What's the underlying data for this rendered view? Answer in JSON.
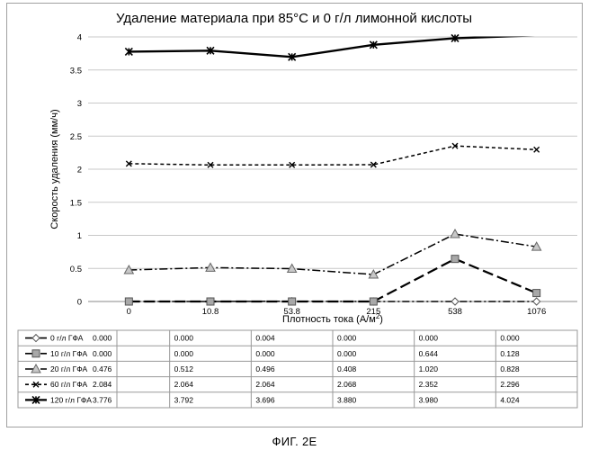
{
  "chart_data": {
    "type": "line",
    "title": "Удаление материала при 85°С и 0 г/л лимонной кислоты",
    "xlabel": "Плотность тока (А/м",
    "xlabel_sup": "2",
    "xlabel_end": ")",
    "ylabel": "Скорость удаления (мм/ч)",
    "ylim": [
      0,
      4
    ],
    "yticks": [
      "0",
      "0.5",
      "1",
      "1.5",
      "2",
      "2.5",
      "3",
      "3.5",
      "4"
    ],
    "grid": true,
    "legend": "table-below",
    "categories": [
      "0",
      "10.8",
      "53.8",
      "215",
      "538",
      "1076"
    ],
    "series": [
      {
        "name": "0 г/л ГФА",
        "marker": "diamond",
        "dash": "8,3,2,3",
        "color": "#000000",
        "values": [
          0.0,
          0.0,
          0.004,
          0.0,
          0.0,
          0.0
        ],
        "labels": [
          "0.000",
          "0.000",
          "0.004",
          "0.000",
          "0.000",
          "0.000"
        ]
      },
      {
        "name": "10 г/л ГФА",
        "marker": "square",
        "dash": "12,5",
        "color": "#000000",
        "values": [
          0.0,
          0.0,
          0.0,
          0.0,
          0.644,
          0.128
        ],
        "labels": [
          "0.000",
          "0.000",
          "0.000",
          "0.000",
          "0.644",
          "0.128"
        ]
      },
      {
        "name": "20 г/л ГФА",
        "marker": "triangle",
        "dash": "9,3,2,3",
        "color": "#000000",
        "values": [
          0.476,
          0.512,
          0.496,
          0.408,
          1.02,
          0.828
        ],
        "labels": [
          "0.476",
          "0.512",
          "0.496",
          "0.408",
          "1.020",
          "0.828"
        ]
      },
      {
        "name": "60 г/л ГФА",
        "marker": "x",
        "dash": "4,3",
        "color": "#000000",
        "values": [
          2.084,
          2.064,
          2.064,
          2.068,
          2.352,
          2.296
        ],
        "labels": [
          "2.084",
          "2.064",
          "2.064",
          "2.068",
          "2.352",
          "2.296"
        ]
      },
      {
        "name": "120 г/л ГФА",
        "marker": "star",
        "dash": "",
        "color": "#000000",
        "values": [
          3.776,
          3.792,
          3.696,
          3.88,
          3.98,
          4.024
        ],
        "labels": [
          "3.776",
          "3.792",
          "3.696",
          "3.880",
          "3.980",
          "4.024"
        ]
      }
    ]
  },
  "caption": "ФИГ. 2Е"
}
